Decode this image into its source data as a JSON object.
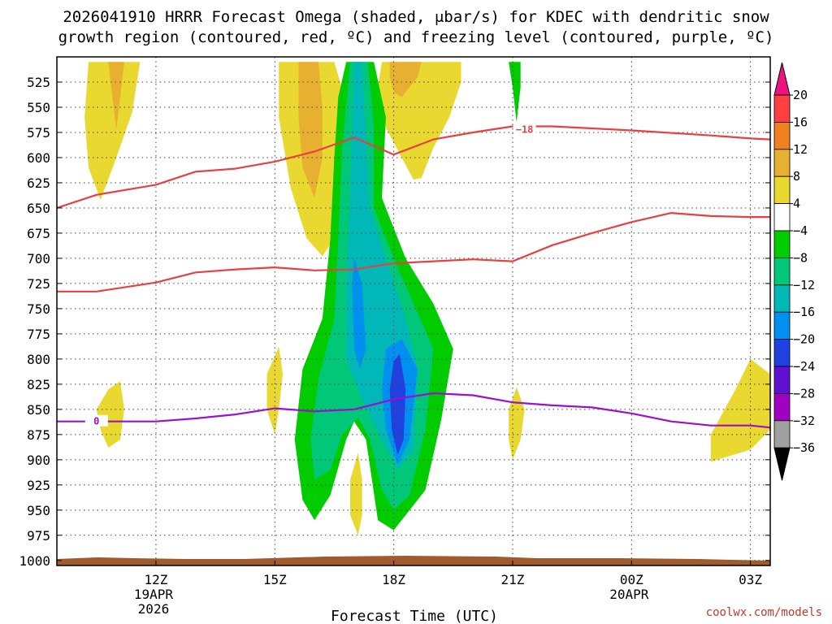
{
  "chart_data": {
    "type": "contour",
    "title_line1": "2026041910 HRRR Forecast Omega (shaded, μbar/s) for KDEC with dendritic snow",
    "title_line2": "growth region (contoured, red, ºC) and freezing level (contoured, purple, ºC)",
    "xlabel": "Forecast Time (UTC)",
    "watermark": "coolwx.com/models",
    "x_range_hours": [
      9.5,
      27.5
    ],
    "y_range_hpa": [
      1005,
      500
    ],
    "y_ticks": [
      525,
      550,
      575,
      600,
      625,
      650,
      675,
      700,
      725,
      750,
      775,
      800,
      825,
      850,
      875,
      900,
      925,
      950,
      975,
      1000
    ],
    "x_ticks": [
      {
        "hour": 12,
        "label": "12Z",
        "sub1": "19APR",
        "sub2": "2026"
      },
      {
        "hour": 15,
        "label": "15Z",
        "sub1": "",
        "sub2": ""
      },
      {
        "hour": 18,
        "label": "18Z",
        "sub1": "",
        "sub2": ""
      },
      {
        "hour": 21,
        "label": "21Z",
        "sub1": "",
        "sub2": ""
      },
      {
        "hour": 24,
        "label": "00Z",
        "sub1": "20APR",
        "sub2": ""
      },
      {
        "hour": 27,
        "label": "03Z",
        "sub1": "",
        "sub2": ""
      }
    ],
    "colorbar": {
      "labels": [
        "20",
        "16",
        "12",
        "8",
        "4",
        "−4",
        "−8",
        "−12",
        "−16",
        "−20",
        "−24",
        "−28",
        "−32",
        "−36"
      ],
      "colors": [
        "#ff4040",
        "#f08020",
        "#e8b030",
        "#e8d830",
        "#ffffff",
        "#00cc00",
        "#00c878",
        "#00b8b8",
        "#0090f0",
        "#2040e0",
        "#6010d0",
        "#a000c0",
        "#a0a0a0"
      ],
      "top_color": "#ee1480",
      "bottom_color": "#000000"
    },
    "contour_lines": [
      {
        "value": -18,
        "label": "−18",
        "color": "#e84040",
        "label_at": [
          21.3,
          572
        ],
        "points": [
          [
            9.5,
            650
          ],
          [
            10.5,
            637
          ],
          [
            12,
            627
          ],
          [
            13,
            614
          ],
          [
            14,
            611
          ],
          [
            15,
            604
          ],
          [
            16,
            594
          ],
          [
            17,
            580
          ],
          [
            18,
            597
          ],
          [
            19,
            582
          ],
          [
            20,
            575
          ],
          [
            21,
            569
          ],
          [
            22,
            569
          ],
          [
            24,
            573
          ],
          [
            26,
            578
          ],
          [
            27,
            581
          ],
          [
            27.5,
            582
          ]
        ]
      },
      {
        "value": -12,
        "label": "",
        "color": "#e84040",
        "points": [
          [
            9.5,
            733
          ],
          [
            10.5,
            733
          ],
          [
            12,
            724
          ],
          [
            13,
            714
          ],
          [
            14,
            711
          ],
          [
            15,
            709
          ],
          [
            16,
            712
          ],
          [
            17,
            711
          ],
          [
            18,
            705
          ],
          [
            19,
            703
          ],
          [
            20,
            701
          ],
          [
            21,
            703
          ],
          [
            22,
            687
          ],
          [
            23,
            675
          ],
          [
            24,
            664
          ],
          [
            25,
            655
          ],
          [
            26,
            658
          ],
          [
            27,
            659
          ],
          [
            27.5,
            659
          ]
        ]
      },
      {
        "value": 0,
        "label": "0",
        "color": "#9a10d0",
        "label_at": [
          10.5,
          862
        ],
        "points": [
          [
            9.5,
            862
          ],
          [
            12,
            862
          ],
          [
            13,
            859
          ],
          [
            14,
            855
          ],
          [
            15,
            849
          ],
          [
            16,
            852
          ],
          [
            17,
            850
          ],
          [
            18,
            840
          ],
          [
            19,
            834
          ],
          [
            20,
            836
          ],
          [
            21,
            843
          ],
          [
            22,
            846
          ],
          [
            23,
            848
          ],
          [
            24,
            854
          ],
          [
            25,
            862
          ],
          [
            26,
            866
          ],
          [
            27,
            866
          ],
          [
            27.5,
            868
          ]
        ]
      }
    ],
    "terrain_color": "#a05a2c",
    "omega_regions": [
      {
        "value_range": [
          4,
          8
        ],
        "color": "#e8d830",
        "points": [
          [
            10.3,
            505
          ],
          [
            11.6,
            505
          ],
          [
            11.4,
            555
          ],
          [
            11.0,
            600
          ],
          [
            10.6,
            642
          ],
          [
            10.3,
            610
          ],
          [
            10.2,
            560
          ]
        ]
      },
      {
        "value_range": [
          8,
          12
        ],
        "color": "#e8b030",
        "points": [
          [
            10.8,
            505
          ],
          [
            11.2,
            505
          ],
          [
            11.1,
            540
          ],
          [
            11.0,
            572
          ],
          [
            10.9,
            540
          ]
        ]
      },
      {
        "value_range": [
          4,
          8
        ],
        "color": "#e8d830",
        "points": [
          [
            15.1,
            505
          ],
          [
            16.5,
            505
          ],
          [
            16.9,
            560
          ],
          [
            16.7,
            640
          ],
          [
            16.5,
            680
          ],
          [
            16.2,
            698
          ],
          [
            15.8,
            680
          ],
          [
            15.4,
            630
          ],
          [
            15.1,
            560
          ]
        ]
      },
      {
        "value_range": [
          8,
          12
        ],
        "color": "#e8b030",
        "points": [
          [
            15.6,
            505
          ],
          [
            16.1,
            505
          ],
          [
            16.2,
            550
          ],
          [
            16.2,
            600
          ],
          [
            16.0,
            640
          ],
          [
            15.7,
            610
          ],
          [
            15.6,
            560
          ]
        ]
      },
      {
        "value_range": [
          4,
          8
        ],
        "color": "#e8d830",
        "points": [
          [
            17.7,
            505
          ],
          [
            19.7,
            505
          ],
          [
            19.7,
            525
          ],
          [
            19.4,
            560
          ],
          [
            19.0,
            590
          ],
          [
            18.7,
            620
          ],
          [
            18.5,
            622
          ],
          [
            18.2,
            600
          ],
          [
            17.8,
            570
          ],
          [
            17.6,
            530
          ]
        ]
      },
      {
        "value_range": [
          8,
          12
        ],
        "color": "#e8b030",
        "points": [
          [
            17.9,
            505
          ],
          [
            18.7,
            505
          ],
          [
            18.6,
            520
          ],
          [
            18.2,
            540
          ],
          [
            18.0,
            535
          ],
          [
            17.9,
            520
          ]
        ]
      },
      {
        "value_range": [
          4,
          8
        ],
        "color": "#e8d830",
        "points": [
          [
            10.5,
            850
          ],
          [
            10.8,
            830
          ],
          [
            11.1,
            822
          ],
          [
            11.2,
            850
          ],
          [
            11.1,
            880
          ],
          [
            10.8,
            888
          ],
          [
            10.6,
            870
          ]
        ]
      },
      {
        "value_range": [
          4,
          8
        ],
        "color": "#e8d830",
        "points": [
          [
            14.8,
            815
          ],
          [
            15.1,
            788
          ],
          [
            15.2,
            815
          ],
          [
            15.1,
            850
          ],
          [
            15.0,
            875
          ],
          [
            14.8,
            850
          ]
        ]
      },
      {
        "value_range": [
          4,
          8
        ],
        "color": "#e8d830",
        "points": [
          [
            16.9,
            920
          ],
          [
            17.1,
            893
          ],
          [
            17.2,
            920
          ],
          [
            17.2,
            955
          ],
          [
            17.1,
            975
          ],
          [
            16.9,
            955
          ]
        ]
      },
      {
        "value_range": [
          4,
          8
        ],
        "color": "#e8d830",
        "points": [
          [
            20.9,
            850
          ],
          [
            21.1,
            828
          ],
          [
            21.3,
            850
          ],
          [
            21.2,
            880
          ],
          [
            21.0,
            900
          ],
          [
            20.9,
            880
          ]
        ]
      },
      {
        "value_range": [
          4,
          8
        ],
        "color": "#e8d830",
        "points": [
          [
            26.0,
            875
          ],
          [
            26.6,
            832
          ],
          [
            27.0,
            800
          ],
          [
            27.5,
            815
          ],
          [
            27.5,
            870
          ],
          [
            27.0,
            890
          ],
          [
            26.0,
            902
          ]
        ]
      },
      {
        "value_range": [
          -8,
          -4
        ],
        "color": "#00cc00",
        "points": [
          [
            20.9,
            505
          ],
          [
            21.2,
            505
          ],
          [
            21.2,
            530
          ],
          [
            21.1,
            565
          ],
          [
            21.0,
            530
          ]
        ]
      },
      {
        "value_range": [
          -8,
          -4
        ],
        "color": "#00cc00",
        "points": [
          [
            16.8,
            505
          ],
          [
            17.5,
            505
          ],
          [
            17.8,
            560
          ],
          [
            17.7,
            640
          ],
          [
            18.3,
            700
          ],
          [
            19.0,
            745
          ],
          [
            19.5,
            790
          ],
          [
            19.2,
            860
          ],
          [
            18.8,
            930
          ],
          [
            18.0,
            970
          ],
          [
            17.6,
            960
          ],
          [
            17.3,
            880
          ],
          [
            17.0,
            862
          ],
          [
            16.8,
            880
          ],
          [
            16.4,
            935
          ],
          [
            16.0,
            960
          ],
          [
            15.7,
            940
          ],
          [
            15.5,
            880
          ],
          [
            15.7,
            810
          ],
          [
            16.2,
            760
          ],
          [
            16.4,
            680
          ],
          [
            16.5,
            600
          ],
          [
            16.6,
            540
          ]
        ]
      },
      {
        "value_range": [
          -12,
          -8
        ],
        "color": "#00c878",
        "points": [
          [
            16.9,
            505
          ],
          [
            17.35,
            505
          ],
          [
            17.5,
            570
          ],
          [
            17.5,
            650
          ],
          [
            18.0,
            700
          ],
          [
            18.5,
            745
          ],
          [
            19.0,
            790
          ],
          [
            18.8,
            870
          ],
          [
            18.4,
            935
          ],
          [
            18.0,
            950
          ],
          [
            17.7,
            930
          ],
          [
            17.4,
            880
          ],
          [
            17.1,
            858
          ],
          [
            16.7,
            875
          ],
          [
            16.4,
            910
          ],
          [
            16.0,
            920
          ],
          [
            15.9,
            880
          ],
          [
            16.1,
            820
          ],
          [
            16.5,
            760
          ],
          [
            16.6,
            680
          ],
          [
            16.7,
            590
          ]
        ]
      },
      {
        "value_range": [
          -16,
          -12
        ],
        "color": "#00b8b8",
        "points": [
          [
            17.0,
            505
          ],
          [
            17.2,
            505
          ],
          [
            17.3,
            580
          ],
          [
            17.4,
            650
          ],
          [
            17.8,
            700
          ],
          [
            18.3,
            760
          ],
          [
            18.6,
            810
          ],
          [
            18.5,
            890
          ],
          [
            18.1,
            910
          ],
          [
            17.7,
            880
          ],
          [
            17.2,
            840
          ],
          [
            16.8,
            800
          ],
          [
            16.8,
            730
          ],
          [
            16.9,
            640
          ],
          [
            16.95,
            560
          ]
        ]
      },
      {
        "value_range": [
          -20,
          -16
        ],
        "color": "#0090f0",
        "points": [
          [
            17.0,
            700
          ],
          [
            17.2,
            725
          ],
          [
            17.3,
            790
          ],
          [
            17.15,
            810
          ],
          [
            17.0,
            790
          ],
          [
            16.95,
            730
          ]
        ]
      },
      {
        "value_range": [
          -20,
          -16
        ],
        "color": "#0090f0",
        "points": [
          [
            17.8,
            790
          ],
          [
            18.2,
            780
          ],
          [
            18.6,
            810
          ],
          [
            18.4,
            880
          ],
          [
            18.1,
            905
          ],
          [
            17.8,
            870
          ],
          [
            17.7,
            830
          ]
        ]
      },
      {
        "value_range": [
          -24,
          -20
        ],
        "color": "#2040e0",
        "points": [
          [
            18.0,
            802
          ],
          [
            18.15,
            795
          ],
          [
            18.3,
            830
          ],
          [
            18.25,
            880
          ],
          [
            18.1,
            895
          ],
          [
            17.95,
            870
          ],
          [
            17.9,
            830
          ]
        ]
      }
    ]
  }
}
